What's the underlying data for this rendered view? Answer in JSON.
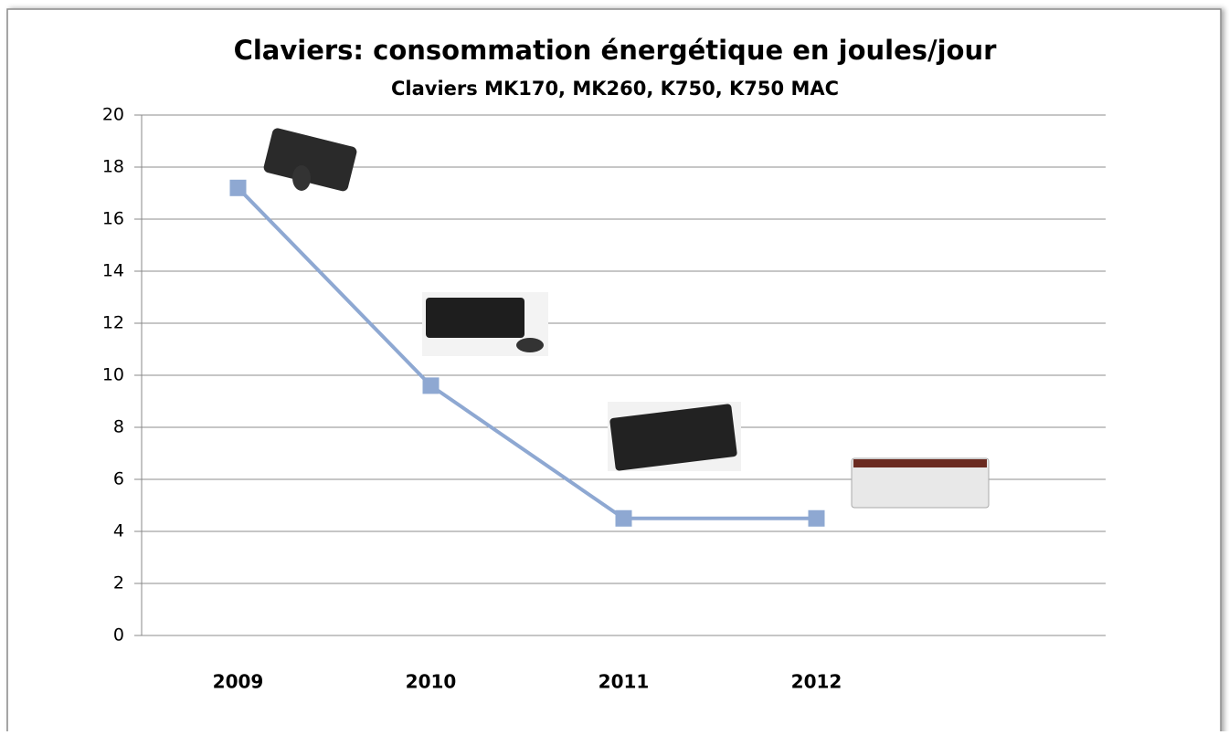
{
  "chart_data": {
    "type": "line",
    "title": "Claviers: consommation énergétique en joules/jour",
    "subtitle": "Claviers MK170, MK260, K750, K750 MAC",
    "categories": [
      "2009",
      "2010",
      "2011",
      "2012",
      null
    ],
    "series": [
      {
        "color": "#8ea8d2",
        "values": [
          17.2,
          9.6,
          4.5,
          4.5,
          null
        ]
      }
    ],
    "ylim": [
      0,
      20
    ],
    "yticks": [
      0,
      2,
      4,
      6,
      8,
      10,
      12,
      14,
      16,
      18,
      20
    ],
    "grid": true
  }
}
